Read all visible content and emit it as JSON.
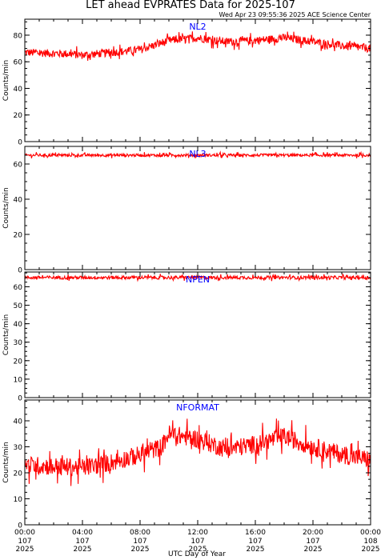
{
  "title": "LET ahead EVPRATES Data for 2025-107",
  "timestamp": "Wed Apr 23 09:55:36 2025 ACE Science Center",
  "xlabel": "UTC Day of Year",
  "ylabel": "Counts/min",
  "x_ticks": [
    {
      "time": "00:00",
      "doy": "107",
      "year": "2025"
    },
    {
      "time": "04:00",
      "doy": "107",
      "year": "2025"
    },
    {
      "time": "08:00",
      "doy": "107",
      "year": "2025"
    },
    {
      "time": "12:00",
      "doy": "107",
      "year": "2025"
    },
    {
      "time": "16:00",
      "doy": "107",
      "year": "2025"
    },
    {
      "time": "20:00",
      "doy": "107",
      "year": "2025"
    },
    {
      "time": "00:00",
      "doy": "108",
      "year": "2025"
    }
  ],
  "colors": {
    "series": "#ff0000",
    "label": "#0000ff",
    "frame": "#000000"
  },
  "chart_data": [
    {
      "type": "line",
      "series_label": "NL2",
      "x_range_hours": [
        0,
        24
      ],
      "ylim": [
        0,
        92
      ],
      "yticks": [
        0,
        20,
        40,
        60,
        80
      ],
      "profile": [
        [
          0,
          67
        ],
        [
          3,
          66
        ],
        [
          4,
          65
        ],
        [
          6,
          67
        ],
        [
          8,
          69
        ],
        [
          10,
          76
        ],
        [
          12,
          78
        ],
        [
          14,
          75
        ],
        [
          16,
          76
        ],
        [
          18,
          78
        ],
        [
          20,
          75
        ],
        [
          22,
          72
        ],
        [
          24,
          70
        ]
      ],
      "noise": 3
    },
    {
      "type": "line",
      "series_label": "NL3",
      "x_range_hours": [
        0,
        24
      ],
      "ylim": [
        0,
        70
      ],
      "yticks": [
        0,
        20,
        40,
        60
      ],
      "profile": [
        [
          0,
          65
        ],
        [
          24,
          65
        ]
      ],
      "noise": 0.8
    },
    {
      "type": "line",
      "series_label": "NPEN",
      "x_range_hours": [
        0,
        24
      ],
      "ylim": [
        0,
        68
      ],
      "yticks": [
        0,
        10,
        20,
        30,
        40,
        50,
        60
      ],
      "profile": [
        [
          0,
          65
        ],
        [
          24,
          65
        ]
      ],
      "noise": 0.9
    },
    {
      "type": "line",
      "series_label": "NFORMAT",
      "x_range_hours": [
        0,
        24
      ],
      "ylim": [
        0,
        48
      ],
      "yticks": [
        0,
        10,
        20,
        30,
        40
      ],
      "profile": [
        [
          0,
          23
        ],
        [
          4,
          22
        ],
        [
          6,
          24
        ],
        [
          8,
          27
        ],
        [
          9.5,
          30
        ],
        [
          10,
          35
        ],
        [
          12,
          33
        ],
        [
          14,
          29
        ],
        [
          16,
          31
        ],
        [
          18,
          34
        ],
        [
          20,
          30
        ],
        [
          22,
          27
        ],
        [
          24,
          25
        ]
      ],
      "noise": 3.5
    }
  ]
}
